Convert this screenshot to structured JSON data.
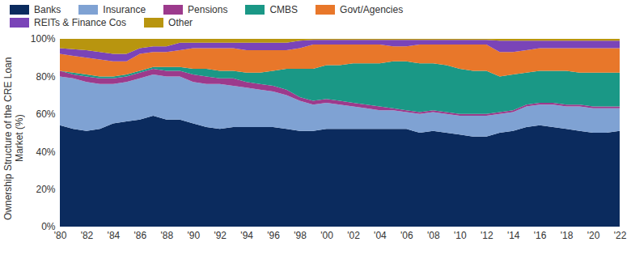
{
  "chart_data": {
    "type": "area",
    "stacked": true,
    "y_label": "Ownership Structure of the CRE Loan Market (%)",
    "x": [
      1980,
      1981,
      1982,
      1983,
      1984,
      1985,
      1986,
      1987,
      1988,
      1989,
      1990,
      1991,
      1992,
      1993,
      1994,
      1995,
      1996,
      1997,
      1998,
      1999,
      2000,
      2001,
      2002,
      2003,
      2004,
      2005,
      2006,
      2007,
      2008,
      2009,
      2010,
      2011,
      2012,
      2013,
      2014,
      2015,
      2016,
      2017,
      2018,
      2019,
      2020,
      2021,
      2022
    ],
    "xlim": [
      1980,
      2022
    ],
    "xticks": [
      {
        "value": 1980,
        "label": "'80"
      },
      {
        "value": 1982,
        "label": "'82"
      },
      {
        "value": 1984,
        "label": "'84"
      },
      {
        "value": 1986,
        "label": "'86"
      },
      {
        "value": 1988,
        "label": "'88"
      },
      {
        "value": 1990,
        "label": "'90"
      },
      {
        "value": 1992,
        "label": "'92"
      },
      {
        "value": 1994,
        "label": "'94"
      },
      {
        "value": 1996,
        "label": "'96"
      },
      {
        "value": 1998,
        "label": "'98"
      },
      {
        "value": 2000,
        "label": "'00"
      },
      {
        "value": 2002,
        "label": "'02"
      },
      {
        "value": 2004,
        "label": "'04"
      },
      {
        "value": 2006,
        "label": "'06"
      },
      {
        "value": 2008,
        "label": "'08"
      },
      {
        "value": 2010,
        "label": "'10"
      },
      {
        "value": 2012,
        "label": "'12"
      },
      {
        "value": 2014,
        "label": "'14"
      },
      {
        "value": 2016,
        "label": "'16"
      },
      {
        "value": 2018,
        "label": "'18"
      },
      {
        "value": 2020,
        "label": "'20"
      },
      {
        "value": 2022,
        "label": "'22"
      }
    ],
    "ylim": [
      0,
      100
    ],
    "yticks": [
      {
        "value": 0,
        "label": "0%"
      },
      {
        "value": 20,
        "label": "20%"
      },
      {
        "value": 40,
        "label": "40%"
      },
      {
        "value": 60,
        "label": "60%"
      },
      {
        "value": 80,
        "label": "80%"
      },
      {
        "value": 100,
        "label": "100%"
      }
    ],
    "grid": false,
    "legend": "top",
    "series": [
      {
        "name": "Banks",
        "color": "#0b2b5e",
        "values": [
          54,
          52,
          51,
          52,
          55,
          56,
          57,
          59,
          57,
          57,
          55,
          53,
          52,
          53,
          53,
          53,
          53,
          52,
          51,
          51,
          52,
          52,
          52,
          52,
          52,
          52,
          52,
          50,
          51,
          50,
          49,
          48,
          48,
          50,
          51,
          53,
          54,
          53,
          52,
          51,
          50,
          50,
          51
        ]
      },
      {
        "name": "Insurance",
        "color": "#7fa2d3",
        "values": [
          26,
          27,
          26,
          24,
          21,
          21,
          22,
          22,
          23,
          23,
          22,
          23,
          24,
          22,
          21,
          20,
          19,
          18,
          16,
          14,
          14,
          13,
          12,
          11,
          10,
          10,
          9,
          10,
          10,
          10,
          10,
          11,
          11,
          10,
          10,
          11,
          11,
          12,
          12,
          13,
          13,
          13,
          12
        ]
      },
      {
        "name": "Pensions",
        "color": "#9c3a8c",
        "values": [
          3,
          2,
          3,
          3,
          3,
          3,
          3,
          3,
          3,
          3,
          4,
          4,
          3,
          4,
          3,
          3,
          3,
          3,
          2,
          2,
          2,
          2,
          2,
          2,
          2,
          1,
          1,
          1,
          1,
          1,
          1,
          1,
          1,
          1,
          1,
          1,
          1,
          1,
          1,
          1,
          1,
          1,
          1
        ]
      },
      {
        "name": "CMBS",
        "color": "#1a9886",
        "values": [
          0,
          1,
          1,
          1,
          1,
          1,
          1,
          1,
          2,
          2,
          3,
          4,
          4,
          4,
          5,
          6,
          8,
          11,
          15,
          17,
          18,
          19,
          21,
          22,
          23,
          25,
          26,
          26,
          25,
          25,
          24,
          23,
          23,
          19,
          19,
          17,
          17,
          17,
          18,
          17,
          18,
          18,
          18
        ]
      },
      {
        "name": "Govt/Agencies",
        "color": "#e8772a",
        "values": [
          9,
          9,
          9,
          9,
          8,
          7,
          9,
          8,
          8,
          9,
          11,
          11,
          12,
          12,
          12,
          12,
          11,
          10,
          11,
          13,
          11,
          11,
          10,
          10,
          10,
          8,
          8,
          10,
          10,
          11,
          13,
          14,
          14,
          13,
          12,
          12,
          12,
          12,
          12,
          13,
          13,
          13,
          13
        ]
      },
      {
        "name": "REITs & Finance Cos",
        "color": "#7a44b8",
        "values": [
          3,
          3.5,
          4,
          4,
          4,
          4,
          3,
          3,
          3,
          4,
          3,
          3,
          3,
          3,
          4,
          4,
          4,
          4,
          4,
          2.5,
          2.5,
          2.5,
          2.5,
          2.5,
          2.5,
          3.5,
          3.5,
          2.5,
          2.5,
          2.5,
          2.5,
          2.5,
          2.5,
          6,
          6,
          5,
          4,
          4,
          4,
          4,
          4,
          4,
          4
        ]
      },
      {
        "name": "Other",
        "color": "#b8950f",
        "values": [
          5,
          5.5,
          6,
          7,
          8,
          8,
          5,
          4,
          4,
          2,
          2,
          2,
          2,
          2,
          2,
          2,
          2,
          2,
          1,
          0.5,
          0.5,
          0.5,
          0.5,
          0.5,
          0.5,
          0.5,
          0.5,
          0.5,
          0.5,
          0.5,
          0.5,
          0.5,
          0.5,
          1,
          1,
          1,
          1,
          1,
          1,
          1,
          1,
          1,
          1
        ]
      }
    ]
  }
}
